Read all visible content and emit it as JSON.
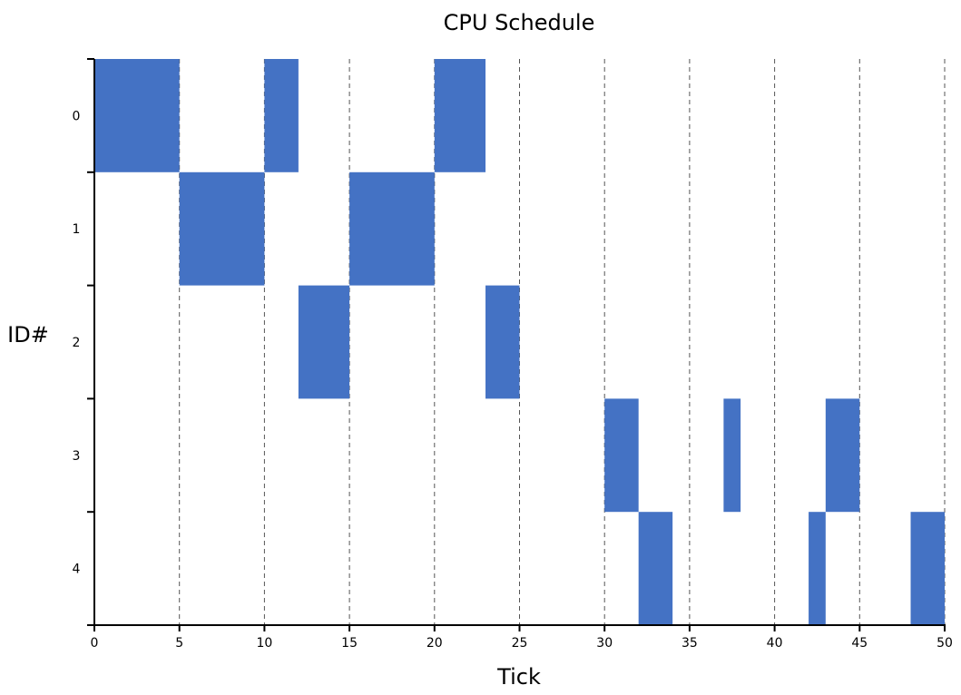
{
  "chart_data": {
    "type": "gantt",
    "title": "CPU Schedule",
    "xlabel": "Tick",
    "ylabel": "ID#",
    "xlim": [
      0,
      50
    ],
    "x_ticks": [
      0,
      5,
      10,
      15,
      20,
      25,
      30,
      35,
      40,
      45,
      50
    ],
    "categories": [
      "0",
      "1",
      "2",
      "3",
      "4"
    ],
    "grid": "vertical dashed lines at major x ticks",
    "bar_color": "#4472c4",
    "series": [
      {
        "id": "0",
        "intervals": [
          [
            0,
            5
          ],
          [
            10,
            12
          ],
          [
            20,
            23
          ]
        ]
      },
      {
        "id": "1",
        "intervals": [
          [
            5,
            10
          ],
          [
            15,
            20
          ]
        ]
      },
      {
        "id": "2",
        "intervals": [
          [
            12,
            15
          ],
          [
            23,
            25
          ]
        ]
      },
      {
        "id": "3",
        "intervals": [
          [
            30,
            32
          ],
          [
            37,
            38
          ],
          [
            43,
            45
          ]
        ]
      },
      {
        "id": "4",
        "intervals": [
          [
            32,
            34
          ],
          [
            42,
            43
          ],
          [
            48,
            50
          ]
        ]
      }
    ]
  }
}
